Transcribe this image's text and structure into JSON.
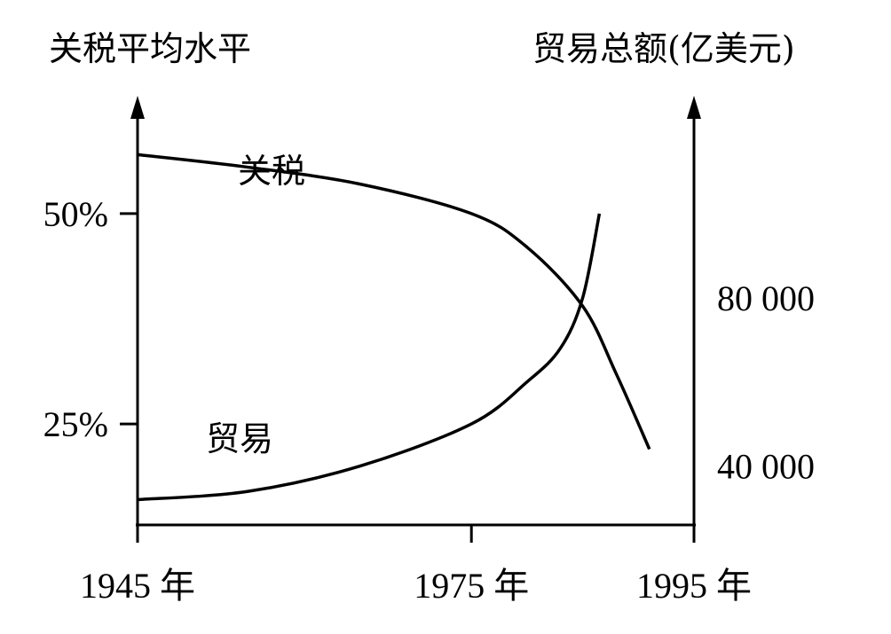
{
  "chart_data": {
    "type": "line",
    "left_axis_title": "关税平均水平",
    "right_axis_title": "贸易总额(亿美元)",
    "x_tick_labels": [
      "1945 年",
      "1975 年",
      "1995 年"
    ],
    "x_ticks": [
      1945,
      1975,
      1995
    ],
    "left_tick_labels": [
      "50%",
      "25%"
    ],
    "left_ticks": [
      50,
      25
    ],
    "right_tick_labels": [
      "80 000",
      "40 000"
    ],
    "right_ticks": [
      80000,
      40000
    ],
    "xlim": [
      1945,
      1995
    ],
    "ylim_left": [
      13,
      64
    ],
    "ylim_right": [
      26000,
      128000
    ],
    "series": [
      {
        "name": "关税",
        "axis": "left",
        "x": [
          1945,
          1955,
          1965,
          1975,
          1980,
          1985,
          1988,
          1991
        ],
        "y": [
          57,
          55.5,
          53.5,
          50,
          46,
          39,
          31,
          22
        ]
      },
      {
        "name": "贸易",
        "axis": "right",
        "x": [
          1945,
          1955,
          1965,
          1975,
          1980,
          1983,
          1985,
          1986.5
        ],
        "y": [
          32000,
          34000,
          40000,
          50000,
          60000,
          68000,
          80000,
          100000
        ]
      }
    ]
  }
}
